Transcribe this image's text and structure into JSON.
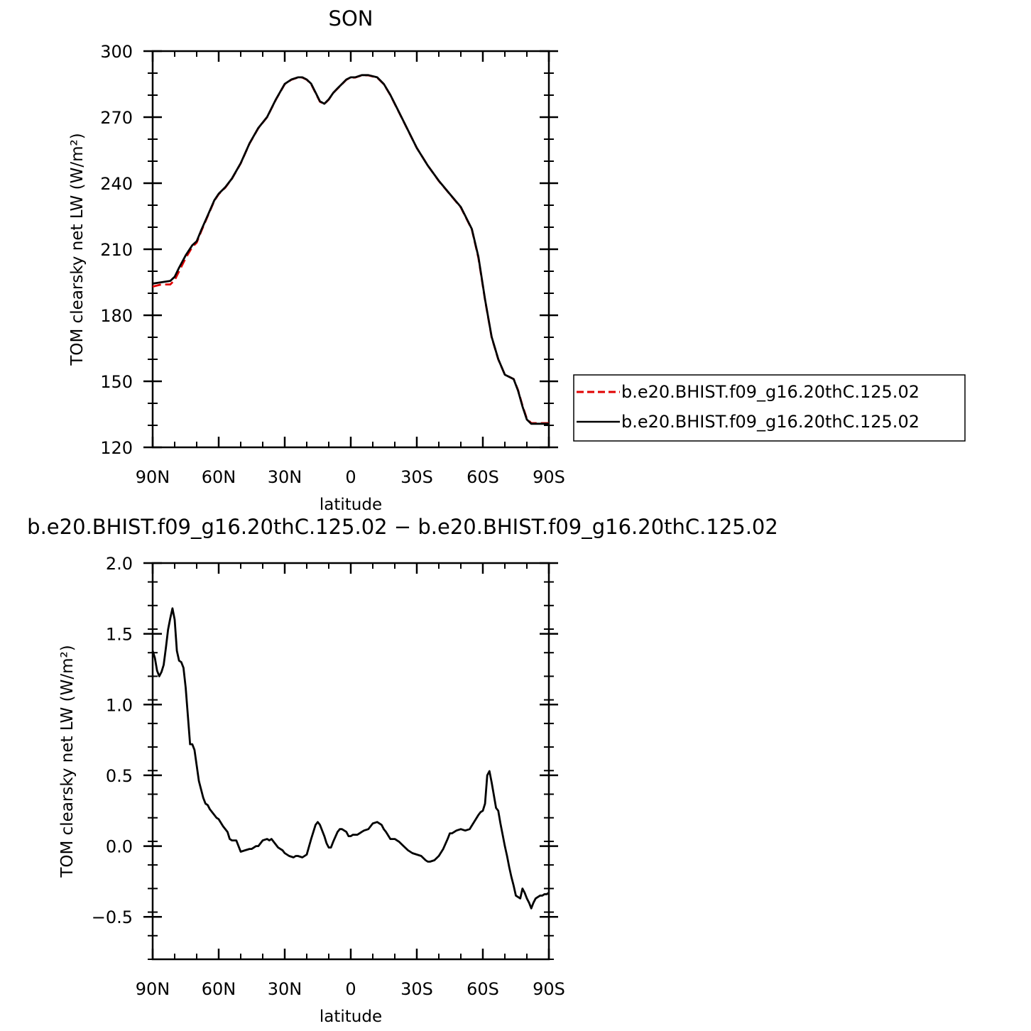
{
  "chart_data": [
    {
      "type": "line",
      "title": "SON",
      "xlabel": "latitude",
      "ylabel": "TOM clearsky net LW (W/m²)",
      "xlim": [
        90,
        -90
      ],
      "ylim": [
        120,
        300
      ],
      "yticks": [
        120,
        150,
        180,
        210,
        240,
        270,
        300
      ],
      "xticks": [
        {
          "value": 90,
          "label": "90N"
        },
        {
          "value": 60,
          "label": "60N"
        },
        {
          "value": 30,
          "label": "30N"
        },
        {
          "value": 0,
          "label": "0"
        },
        {
          "value": -30,
          "label": "30S"
        },
        {
          "value": -60,
          "label": "60S"
        },
        {
          "value": -90,
          "label": "90S"
        }
      ],
      "legend_position": "right",
      "series": [
        {
          "name": "b.e20.BHIST.f09_g16.20thC.125.02",
          "color": "#e00000",
          "style": "dashed",
          "x": [
            90,
            86,
            82,
            80,
            78,
            75,
            72,
            70,
            68,
            65,
            62,
            60,
            57,
            54,
            50,
            46,
            42,
            38,
            34,
            30,
            27,
            24,
            22,
            20,
            18,
            16,
            14,
            12,
            10,
            8,
            6,
            4,
            2,
            0,
            -2,
            -5,
            -8,
            -12,
            -15,
            -18,
            -21,
            -25,
            -30,
            -35,
            -40,
            -45,
            -50,
            -55,
            -58,
            -61,
            -64,
            -67,
            -70,
            -72,
            -74,
            -76,
            -78,
            -80,
            -82,
            -84,
            -86,
            -88,
            -90
          ],
          "y": [
            193,
            194,
            194,
            196,
            200,
            206,
            211,
            213,
            218,
            225,
            232,
            235,
            238,
            242,
            249,
            258,
            265,
            270,
            278,
            285,
            287,
            288,
            288,
            287,
            285,
            281,
            277,
            276,
            278,
            281,
            283,
            285,
            287,
            288,
            288,
            289,
            289,
            288,
            285,
            280,
            274,
            266,
            256,
            248,
            241,
            235,
            229,
            219,
            206,
            187,
            170,
            160,
            153,
            152,
            151,
            146,
            139,
            133,
            131,
            131,
            131,
            131,
            131
          ]
        },
        {
          "name": "b.e20.BHIST.f09_g16.20thC.125.02",
          "color": "#000000",
          "style": "solid",
          "x": [
            90,
            86,
            82,
            80,
            78,
            75,
            72,
            70,
            68,
            65,
            62,
            60,
            57,
            54,
            50,
            46,
            42,
            38,
            34,
            30,
            27,
            24,
            22,
            20,
            18,
            16,
            14,
            12,
            10,
            8,
            6,
            4,
            2,
            0,
            -2,
            -5,
            -8,
            -12,
            -15,
            -18,
            -21,
            -25,
            -30,
            -35,
            -40,
            -45,
            -50,
            -55,
            -58,
            -61,
            -64,
            -67,
            -70,
            -72,
            -74,
            -76,
            -78,
            -80,
            -82,
            -84,
            -86,
            -88,
            -90
          ],
          "y": [
            194.4,
            195,
            195.6,
            197.5,
            201.6,
            207.2,
            211.8,
            213.6,
            218.5,
            225.3,
            232.2,
            235.2,
            238.2,
            242.1,
            249.1,
            258.1,
            265.1,
            270.1,
            278.1,
            285.1,
            287.1,
            288.1,
            288.1,
            287.1,
            285.2,
            281.2,
            277.2,
            276.1,
            278.1,
            281,
            283.1,
            285.1,
            287.1,
            288.1,
            288.1,
            289.1,
            289.1,
            288.1,
            285.1,
            280.1,
            274.1,
            266.1,
            256,
            248,
            241.1,
            235.1,
            229.2,
            219.2,
            206.5,
            187.2,
            170.2,
            160.1,
            153,
            152,
            151,
            145.7,
            138.6,
            132.6,
            130.7,
            130.7,
            130.7,
            130.7,
            130.7
          ]
        }
      ]
    },
    {
      "type": "line",
      "title": "b.e20.BHIST.f09_g16.20thC.125.02 − b.e20.BHIST.f09_g16.20thC.125.02",
      "xlabel": "latitude",
      "ylabel": "TOM clearsky net LW (W/m²)",
      "xlim": [
        90,
        -90
      ],
      "ylim": [
        -0.8,
        2.0
      ],
      "yticks": [
        -0.5,
        0.0,
        0.5,
        1.0,
        1.5,
        2.0
      ],
      "ytick_labels": [
        "−0.5",
        "0.0",
        "0.5",
        "1.0",
        "1.5",
        "2.0"
      ],
      "xticks": [
        {
          "value": 90,
          "label": "90N"
        },
        {
          "value": 60,
          "label": "60N"
        },
        {
          "value": 30,
          "label": "30N"
        },
        {
          "value": 0,
          "label": "0"
        },
        {
          "value": -30,
          "label": "30S"
        },
        {
          "value": -60,
          "label": "60S"
        },
        {
          "value": -90,
          "label": "90S"
        }
      ],
      "series": [
        {
          "color": "#000000",
          "style": "solid",
          "x": [
            90,
            89,
            88,
            87,
            86,
            85,
            84,
            83,
            82,
            81,
            80,
            79,
            78,
            77,
            76,
            75,
            74,
            73,
            72,
            71,
            70,
            69,
            68,
            67,
            66,
            65,
            64,
            63,
            62,
            61,
            60,
            58,
            56,
            55,
            54,
            52,
            50,
            48,
            46,
            45,
            44,
            43,
            42,
            40,
            38,
            37,
            36,
            34,
            33,
            32,
            31,
            30,
            28,
            26,
            25,
            24,
            22,
            20,
            18,
            16,
            15,
            14,
            12,
            11,
            10,
            9,
            8,
            6,
            5,
            4,
            2,
            1,
            0,
            -1,
            -3,
            -5,
            -6,
            -8,
            -10,
            -12,
            -14,
            -15,
            -16,
            -18,
            -20,
            -22,
            -24,
            -26,
            -28,
            -30,
            -32,
            -34,
            -35,
            -36,
            -38,
            -40,
            -42,
            -44,
            -45,
            -46,
            -48,
            -50,
            -52,
            -54,
            -56,
            -58,
            -59,
            -60,
            -61,
            -62,
            -63,
            -64,
            -65,
            -66,
            -67,
            -68,
            -69,
            -70,
            -71,
            -72,
            -73,
            -74,
            -75,
            -76,
            -77,
            -78,
            -79,
            -80,
            -81,
            -82,
            -83,
            -84,
            -85,
            -86,
            -87,
            -88,
            -89,
            -90
          ],
          "y": [
            1.38,
            1.33,
            1.24,
            1.2,
            1.23,
            1.28,
            1.4,
            1.53,
            1.61,
            1.68,
            1.6,
            1.38,
            1.31,
            1.3,
            1.26,
            1.12,
            0.92,
            0.72,
            0.72,
            0.68,
            0.57,
            0.46,
            0.4,
            0.34,
            0.3,
            0.29,
            0.26,
            0.24,
            0.22,
            0.2,
            0.19,
            0.14,
            0.1,
            0.05,
            0.04,
            0.04,
            -0.04,
            -0.03,
            -0.02,
            -0.02,
            -0.01,
            0.0,
            0.0,
            0.04,
            0.05,
            0.04,
            0.05,
            0.01,
            -0.01,
            -0.02,
            -0.03,
            -0.05,
            -0.07,
            -0.08,
            -0.07,
            -0.07,
            -0.08,
            -0.06,
            0.05,
            0.15,
            0.17,
            0.15,
            0.07,
            0.02,
            -0.01,
            -0.01,
            0.03,
            0.1,
            0.12,
            0.12,
            0.1,
            0.07,
            0.07,
            0.08,
            0.08,
            0.1,
            0.11,
            0.12,
            0.16,
            0.17,
            0.15,
            0.12,
            0.1,
            0.05,
            0.05,
            0.03,
            0.0,
            -0.03,
            -0.05,
            -0.06,
            -0.07,
            -0.1,
            -0.11,
            -0.11,
            -0.1,
            -0.07,
            -0.02,
            0.05,
            0.09,
            0.09,
            0.11,
            0.12,
            0.11,
            0.12,
            0.17,
            0.22,
            0.24,
            0.25,
            0.3,
            0.5,
            0.53,
            0.45,
            0.36,
            0.27,
            0.25,
            0.16,
            0.08,
            0.0,
            -0.07,
            -0.15,
            -0.22,
            -0.28,
            -0.35,
            -0.36,
            -0.37,
            -0.3,
            -0.33,
            -0.37,
            -0.4,
            -0.44,
            -0.4,
            -0.37,
            -0.36,
            -0.35,
            -0.35,
            -0.34,
            -0.34,
            -0.33
          ]
        }
      ]
    }
  ]
}
